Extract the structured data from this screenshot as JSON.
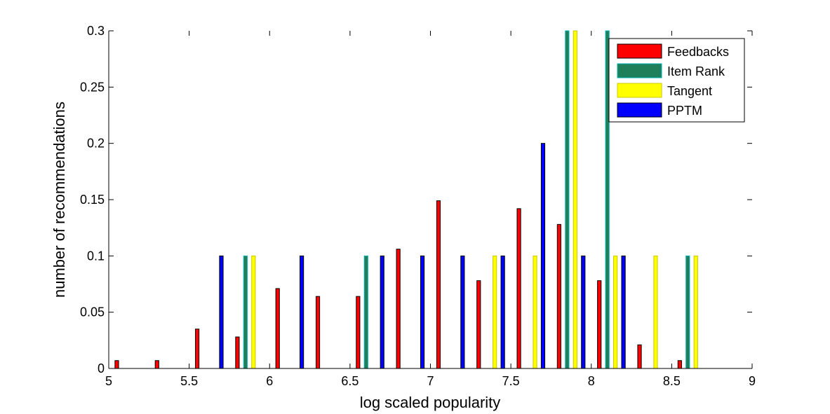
{
  "chart_data": {
    "type": "bar",
    "xlabel": "log scaled popularity",
    "ylabel": "number of recommendations",
    "xlim": [
      5,
      9
    ],
    "ylim": [
      0,
      0.3
    ],
    "xticks": [
      5,
      5.5,
      6,
      6.5,
      7,
      7.5,
      8,
      8.5,
      9
    ],
    "xtick_labels": [
      "5",
      "5.5",
      "6",
      "6.5",
      "7",
      "7.5",
      "8",
      "8.5",
      "9"
    ],
    "yticks": [
      0,
      0.05,
      0.1,
      0.15,
      0.2,
      0.25,
      0.3
    ],
    "ytick_labels": [
      "0",
      "0.05",
      "0.1",
      "0.15",
      "0.2",
      "0.25",
      "0.3"
    ],
    "grid": false,
    "legend_position": "top-right",
    "bin_width": 0.25,
    "bin_centers": [
      5.125,
      5.375,
      5.625,
      5.875,
      6.125,
      6.375,
      6.625,
      6.875,
      7.125,
      7.375,
      7.625,
      7.875,
      8.125,
      8.375,
      8.625,
      8.875
    ],
    "series": [
      {
        "name": "Feedbacks",
        "color": "#ff0000",
        "edge": "#000000",
        "values": [
          0.007,
          0.007,
          0.035,
          0.028,
          0.071,
          0.064,
          0.064,
          0.106,
          0.149,
          0.078,
          0.142,
          0.128,
          0.078,
          0.021,
          0.007,
          0
        ]
      },
      {
        "name": "Item Rank",
        "color": "#1e7f5a",
        "edge": "#00b3b3",
        "values": [
          0,
          0,
          0,
          0.1,
          0,
          0,
          0.1,
          0,
          0,
          0,
          0,
          0.3,
          0.3,
          0,
          0.1,
          0
        ]
      },
      {
        "name": "Tangent",
        "color": "#ffff00",
        "edge": "#c8c800",
        "values": [
          0,
          0,
          0,
          0.1,
          0,
          0,
          0,
          0,
          0,
          0.1,
          0.1,
          0.3,
          0.1,
          0.1,
          0.1,
          0
        ]
      },
      {
        "name": "PPTM",
        "color": "#0000ff",
        "edge": "#000000",
        "values": [
          0,
          0,
          0.1,
          0,
          0.1,
          0,
          0.1,
          0.1,
          0.1,
          0.1,
          0.2,
          0.1,
          0.1,
          0,
          0,
          0
        ]
      }
    ]
  }
}
